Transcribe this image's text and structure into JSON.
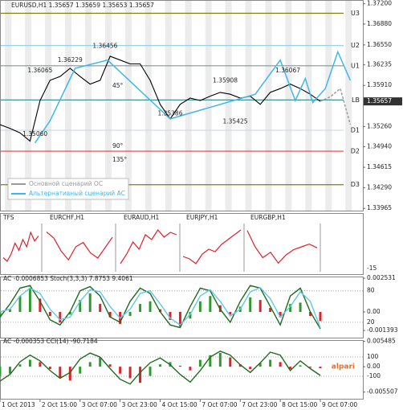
{
  "chart_data": [
    {
      "type": "line",
      "title": "EURUSD,H1  1.35657 1.35659 1.35653 1.35657",
      "xlim": [
        0,
        145
      ],
      "ylim": [
        1.3393,
        1.3726
      ],
      "yticks": [
        {
          "value": 1.372,
          "label": "1.37200"
        },
        {
          "value": 1.3688,
          "label": "1.36880"
        },
        {
          "value": 1.3655,
          "label": "1.36550"
        },
        1.36235,
        {
          "value": 1.3591,
          "label": "1.35910"
        },
        {
          "value": 1.3526,
          "label": "1.35260"
        },
        {
          "value": 1.3494,
          "label": "1.34940"
        },
        1.34615,
        {
          "value": 1.3429,
          "label": "1.34290"
        },
        1.33965
      ],
      "x": [
        0,
        4,
        8,
        12,
        16,
        20,
        24,
        28,
        32,
        36,
        40,
        44,
        48,
        52,
        56,
        60,
        64,
        68,
        72,
        76,
        80,
        84,
        88,
        92,
        96,
        100,
        104,
        108,
        112,
        116,
        120,
        124,
        128
      ],
      "values": [
        1.3529,
        1.3523,
        1.3516,
        1.3503,
        1.3567,
        1.3599,
        1.3605,
        1.3618,
        1.3605,
        1.3593,
        1.3599,
        1.3637,
        1.3631,
        1.3625,
        1.3625,
        1.3599,
        1.3561,
        1.3538,
        1.3561,
        1.3571,
        1.3567,
        1.3574,
        1.358,
        1.3577,
        1.3571,
        1.3574,
        1.3561,
        1.358,
        1.3586,
        1.3593,
        1.3586,
        1.3577,
        1.35657
      ],
      "color": "#000000",
      "current_price": 1.35657,
      "series": [
        {
          "name": "Основной сценарий ОС",
          "color": "#9a9a9a",
          "x": [
            128,
            132,
            136,
            140
          ],
          "values": [
            1.3566,
            1.3573,
            1.3586,
            1.3529
          ]
        },
        {
          "name": "Альтернативный сценарий АС",
          "color": "#3db8ea",
          "x": [
            14,
            20,
            30,
            43,
            68,
            102,
            112,
            118,
            122,
            125,
            130,
            135,
            140
          ],
          "values": [
            1.35,
            1.3535,
            1.3618,
            1.3631,
            1.3538,
            1.3577,
            1.3631,
            1.3567,
            1.3602,
            1.3564,
            1.3586,
            1.3644,
            1.3599
          ]
        }
      ],
      "legend": "lower left",
      "labels": {
        "x": [
          16,
          28,
          42,
          90,
          115,
          14,
          68,
          94
        ],
        "values": [
          1.36065,
          1.36229,
          1.36456,
          1.35908,
          1.36067,
          1.3506,
          1.35386,
          1.35425
        ],
        "value_labels": [
          "1.36065",
          "1.36229",
          "1.36456",
          "1.35908",
          "1.36067",
          "1.35060",
          "1.35386",
          "1.35425"
        ]
      },
      "levels": {
        "names": [
          "U3",
          "U2",
          "U1",
          "LB",
          "D1",
          "D2",
          "D3"
        ],
        "values": [
          1.3705,
          1.3654,
          1.3622,
          1.3568,
          1.352,
          1.3487,
          1.3434
        ],
        "colors": [
          "#7f7f10",
          "#8fd3ef",
          "#7a9a9a",
          "#2a8a8a",
          "#c7d9e9",
          "#e04040",
          "#7f7f10"
        ]
      },
      "angle_labels": [
        "45°",
        "90°",
        "135°"
      ]
    },
    {
      "type": "mini",
      "title": "TFS",
      "right_label": "-15",
      "panels": [
        {
          "values": [
            1.3525,
            1.352,
            1.353,
            1.3545,
            1.3535,
            1.355,
            1.354,
            1.356,
            1.3548,
            1.3555
          ],
          "ylim": [
            1.351,
            1.357
          ]
        },
        {
          "title": "EURCHF,H1",
          "values": [
            1.2262,
            1.2255,
            1.224,
            1.223,
            1.2245,
            1.225,
            1.2238,
            1.2232,
            1.2244,
            1.2256
          ],
          "ylim": [
            1.222,
            1.227
          ]
        },
        {
          "title": "EURAUD,H1",
          "values": [
            1.441,
            1.443,
            1.4455,
            1.444,
            1.447,
            1.446,
            1.448,
            1.4465,
            1.4475,
            1.447
          ],
          "ylim": [
            1.44,
            1.449
          ]
        },
        {
          "title": "EURJPY,H1",
          "values": [
            132.1,
            132,
            131.8,
            132.2,
            132.4,
            132.3,
            132.6,
            132.8,
            133,
            133.2
          ],
          "ylim": [
            131.6,
            133.4
          ]
        },
        {
          "title": "EURGBP,H1",
          "values": [
            0.847,
            0.844,
            0.842,
            0.843,
            0.841,
            0.8425,
            0.8435,
            0.844,
            0.8445,
            0.8438
          ],
          "ylim": [
            0.84,
            0.848
          ]
        }
      ],
      "color": "#e0202a"
    },
    {
      "type": "oscillator",
      "title": "AC -0.0006853  Stoch(3,3,3) 7.8753 9.4061",
      "xlim": [
        0,
        145
      ],
      "ylim": [
        -0.00157,
        0.00254
      ],
      "yticks": [
        0.002531,
        {
          "value": 0,
          "label": "0.00"
        },
        -0.001393
      ],
      "y2lim": [
        0,
        104
      ],
      "y2ticks": [
        80,
        20
      ],
      "x": [
        0,
        4,
        8,
        12,
        16,
        20,
        24,
        28,
        32,
        36,
        40,
        44,
        48,
        52,
        56,
        60,
        64,
        68,
        72,
        76,
        80,
        84,
        88,
        92,
        96,
        100,
        104,
        108,
        112,
        116,
        120,
        124,
        128
      ],
      "series": [
        {
          "kind": "bar",
          "colors": [
            "#2e9a2e",
            "#e0202a"
          ],
          "values": [
            -0.0004,
            0.0002,
            0.0012,
            0.0018,
            0.001,
            -0.0003,
            -0.0008,
            -0.0002,
            0.0009,
            0.0014,
            0.0006,
            -0.0004,
            -0.0009,
            -0.0003,
            0.0006,
            0.0008,
            0.0002,
            -0.0006,
            -0.0011,
            -0.0005,
            0.0008,
            0.0012,
            0.0005,
            -0.0002,
            0.0004,
            0.0011,
            0.0009,
            0.0003,
            -0.0004,
            0.0006,
            0.0007,
            -0.0003,
            -0.0006853
          ]
        },
        {
          "kind": "line",
          "axis": "y2",
          "color": "#1d6b1d",
          "values": [
            30,
            55,
            85,
            90,
            60,
            25,
            15,
            40,
            80,
            88,
            70,
            30,
            20,
            60,
            85,
            75,
            40,
            15,
            10,
            50,
            85,
            80,
            45,
            20,
            60,
            90,
            85,
            50,
            15,
            70,
            85,
            40,
            7.8753
          ]
        },
        {
          "kind": "line",
          "axis": "y2",
          "color": "#62c6ea",
          "values": [
            40,
            45,
            70,
            85,
            75,
            45,
            25,
            30,
            60,
            82,
            78,
            50,
            28,
            45,
            75,
            80,
            55,
            28,
            15,
            35,
            70,
            82,
            60,
            32,
            45,
            78,
            86,
            65,
            30,
            50,
            78,
            60,
            9.4061
          ]
        }
      ]
    },
    {
      "type": "oscillator",
      "title": "AC -0.000353 CCI(14) -90.7184",
      "xlim": [
        0,
        145
      ],
      "ylim": [
        -0.0066,
        0.0056
      ],
      "yticks": [
        0.005485,
        {
          "value": 0,
          "label": "0.00"
        },
        -0.005507
      ],
      "y2lim": [
        -316,
        267
      ],
      "y2ticks": [
        100,
        -100
      ],
      "x": [
        0,
        4,
        8,
        12,
        16,
        20,
        24,
        28,
        32,
        36,
        40,
        44,
        48,
        52,
        56,
        60,
        64,
        68,
        72,
        76,
        80,
        84,
        88,
        92,
        96,
        100,
        104,
        108,
        112,
        116,
        120,
        124,
        128
      ],
      "series": [
        {
          "kind": "bar",
          "colors": [
            "#2e9a2e",
            "#e0202a"
          ],
          "values": [
            -0.002,
            -0.0015,
            0.0005,
            0.0015,
            0.001,
            -0.0005,
            -0.0025,
            -0.003,
            -0.0015,
            0.001,
            0.002,
            0.0005,
            -0.0015,
            -0.0025,
            -0.0035,
            -0.002,
            0.0005,
            0.001,
            0.0002,
            -0.0008,
            0.0015,
            0.0025,
            0.003,
            0.002,
            0.0005,
            -0.0005,
            0.0008,
            0.0015,
            0.001,
            -0.0005,
            0.0003,
            -0.0002,
            -0.000353
          ]
        },
        {
          "kind": "line",
          "axis": "y2",
          "color": "#1d6b1d",
          "values": [
            -150,
            -80,
            50,
            120,
            60,
            -40,
            -120,
            -60,
            80,
            140,
            100,
            -20,
            -130,
            -180,
            -60,
            40,
            90,
            20,
            -80,
            -160,
            -40,
            100,
            160,
            120,
            20,
            -60,
            40,
            150,
            120,
            -40,
            60,
            -20,
            -90.7184
          ]
        }
      ],
      "xticks": [
        {
          "value": 0,
          "label": "1 Oct 2013"
        },
        {
          "value": 16,
          "label": "2 Oct 15:00"
        },
        {
          "value": 32,
          "label": "3 Oct 07:00"
        },
        {
          "value": 48,
          "label": "3 Oct 23:00"
        },
        {
          "value": 64,
          "label": "4 Oct 15:00"
        },
        {
          "value": 80,
          "label": "7 Oct 07:00"
        },
        {
          "value": 96,
          "label": "7 Oct 23:00"
        },
        {
          "value": 112,
          "label": "8 Oct 15:00"
        },
        {
          "value": 128,
          "label": "9 Oct 07:00"
        }
      ]
    }
  ],
  "logo": "alpari"
}
